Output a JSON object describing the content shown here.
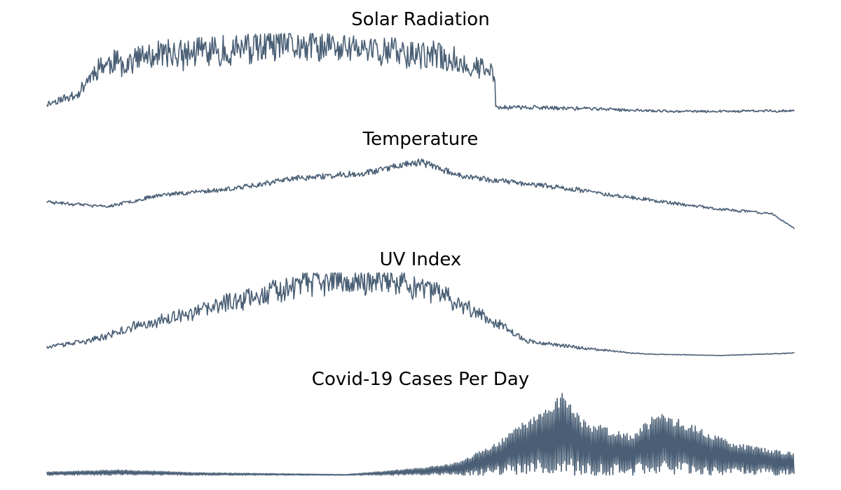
{
  "chart_data": [
    {
      "type": "line",
      "title": "Solar Radiation",
      "xlabel": "",
      "ylabel": "",
      "ylim": [
        0,
        1
      ],
      "grid": false,
      "axes_visible": false,
      "line_color": "#4a5f75",
      "shape": {
        "length": 900,
        "envelope": [
          [
            0,
            0.16
          ],
          [
            0.04,
            0.28
          ],
          [
            0.07,
            0.65
          ],
          [
            0.15,
            0.78
          ],
          [
            0.25,
            0.86
          ],
          [
            0.33,
            0.9
          ],
          [
            0.44,
            0.86
          ],
          [
            0.52,
            0.78
          ],
          [
            0.6,
            0.55
          ],
          [
            0.6,
            0.12
          ],
          [
            0.72,
            0.1
          ],
          [
            0.84,
            0.06
          ],
          [
            1,
            0.07
          ]
        ],
        "noise": 0.42,
        "spikes": 0.0,
        "seed": 11
      }
    },
    {
      "type": "line",
      "title": "Temperature",
      "xlabel": "",
      "ylabel": "",
      "ylim": [
        0,
        1
      ],
      "grid": false,
      "axes_visible": false,
      "line_color": "#4a5f75",
      "shape": {
        "length": 900,
        "envelope": [
          [
            0,
            0.42
          ],
          [
            0.08,
            0.36
          ],
          [
            0.15,
            0.5
          ],
          [
            0.25,
            0.58
          ],
          [
            0.33,
            0.7
          ],
          [
            0.42,
            0.76
          ],
          [
            0.47,
            0.85
          ],
          [
            0.5,
            0.9
          ],
          [
            0.56,
            0.72
          ],
          [
            0.68,
            0.6
          ],
          [
            0.8,
            0.45
          ],
          [
            0.9,
            0.33
          ],
          [
            0.97,
            0.28
          ],
          [
            1,
            0.1
          ]
        ],
        "noise": 0.09,
        "spikes": 0.0,
        "seed": 23
      }
    },
    {
      "type": "line",
      "title": "UV Index",
      "xlabel": "",
      "ylabel": "",
      "ylim": [
        0,
        1
      ],
      "grid": false,
      "axes_visible": false,
      "line_color": "#4a5f75",
      "shape": {
        "length": 900,
        "envelope": [
          [
            0,
            0.12
          ],
          [
            0.06,
            0.2
          ],
          [
            0.12,
            0.38
          ],
          [
            0.2,
            0.55
          ],
          [
            0.28,
            0.78
          ],
          [
            0.34,
            0.9
          ],
          [
            0.4,
            0.95
          ],
          [
            0.46,
            0.95
          ],
          [
            0.52,
            0.8
          ],
          [
            0.58,
            0.55
          ],
          [
            0.64,
            0.2
          ],
          [
            0.72,
            0.1
          ],
          [
            0.8,
            0.03
          ],
          [
            0.9,
            0.01
          ],
          [
            1,
            0.04
          ]
        ],
        "noise": 0.32,
        "spikes": 0.0,
        "seed": 37
      }
    },
    {
      "type": "line",
      "title": "Covid-19 Cases Per Day",
      "xlabel": "",
      "ylabel": "",
      "ylim": [
        0,
        1
      ],
      "grid": false,
      "axes_visible": false,
      "line_color": "#4a5f75",
      "shape": {
        "length": 900,
        "envelope": [
          [
            0,
            0.04
          ],
          [
            0.1,
            0.06
          ],
          [
            0.2,
            0.03
          ],
          [
            0.4,
            0.01
          ],
          [
            0.5,
            0.08
          ],
          [
            0.55,
            0.14
          ],
          [
            0.6,
            0.35
          ],
          [
            0.66,
            0.72
          ],
          [
            0.69,
            0.9
          ],
          [
            0.72,
            0.6
          ],
          [
            0.78,
            0.45
          ],
          [
            0.82,
            0.7
          ],
          [
            0.85,
            0.6
          ],
          [
            0.92,
            0.35
          ],
          [
            1,
            0.25
          ]
        ],
        "noise": 0.7,
        "spikes": 0.0,
        "seed": 53
      }
    }
  ]
}
